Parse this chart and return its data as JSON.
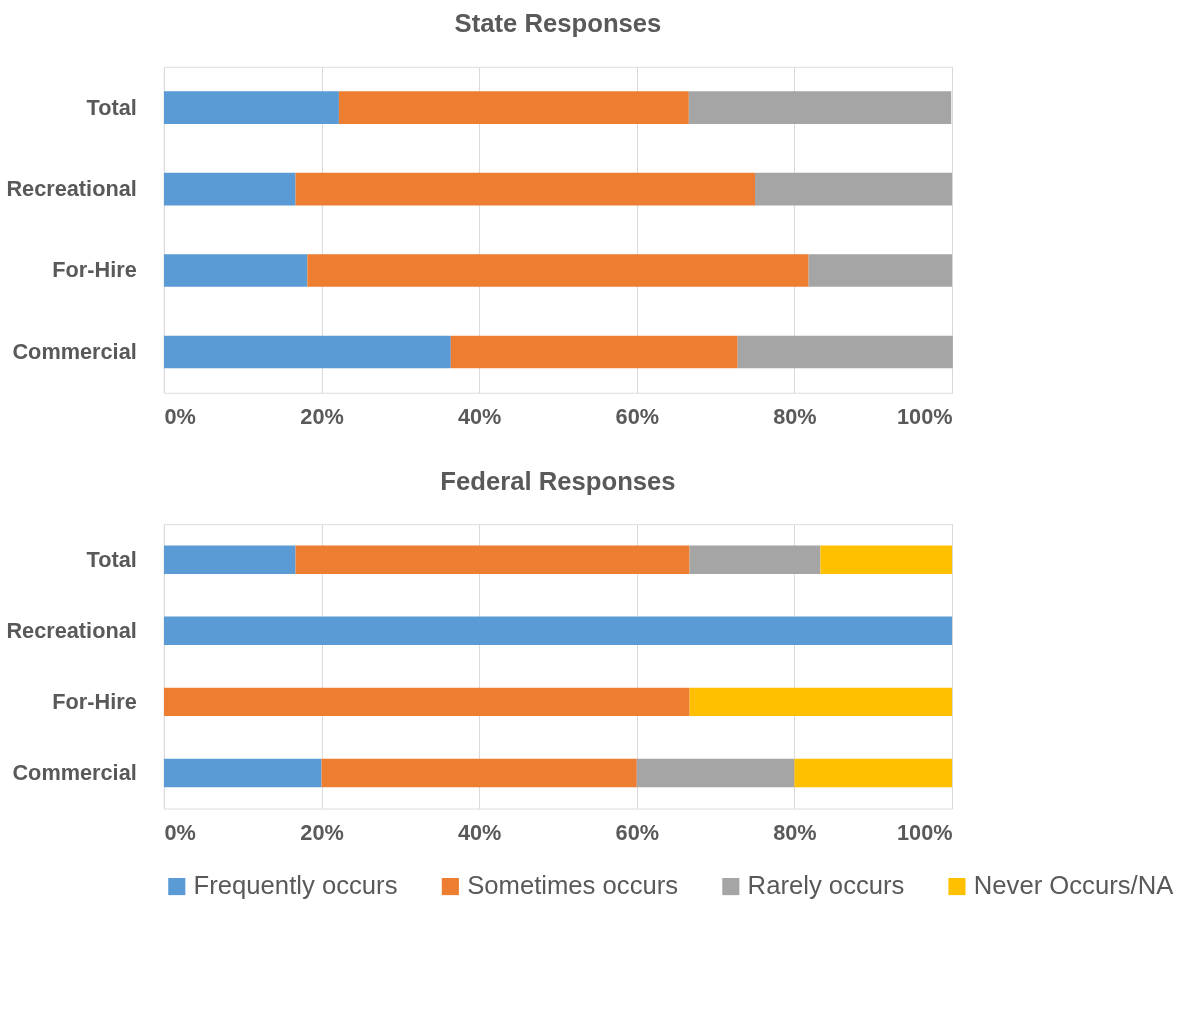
{
  "chart_data": [
    {
      "type": "bar",
      "orientation": "horizontal",
      "stacked": true,
      "title": "State Responses",
      "categories": [
        "Total",
        "Recreational",
        "For-Hire",
        "Commercial"
      ],
      "series": [
        {
          "name": "Frequently occurs",
          "color": "#5b9bd5",
          "values": [
            22.2,
            16.7,
            18.2,
            36.4
          ]
        },
        {
          "name": "Sometimes occurs",
          "color": "#ed7d31",
          "values": [
            44.4,
            58.3,
            63.6,
            36.4
          ]
        },
        {
          "name": "Rarely occurs",
          "color": "#a5a5a5",
          "values": [
            33.3,
            25.0,
            18.2,
            27.3
          ]
        }
      ],
      "xlim": [
        0,
        100
      ],
      "xticks": [
        {
          "value": 0,
          "label": "0%"
        },
        {
          "value": 20,
          "label": "20%"
        },
        {
          "value": 40,
          "label": "40%"
        },
        {
          "value": 60,
          "label": "60%"
        },
        {
          "value": 80,
          "label": "80%"
        },
        {
          "value": 100,
          "label": "100%"
        }
      ],
      "grid": "x",
      "legend": "bottom"
    },
    {
      "type": "bar",
      "orientation": "horizontal",
      "stacked": true,
      "title": "Federal Responses",
      "categories": [
        "Total",
        "Recreational",
        "For-Hire",
        "Commercial"
      ],
      "series": [
        {
          "name": "Frequently occurs",
          "color": "#5b9bd5",
          "values": [
            16.7,
            100,
            0,
            20
          ]
        },
        {
          "name": "Sometimes occurs",
          "color": "#ed7d31",
          "values": [
            50.0,
            0,
            66.7,
            40
          ]
        },
        {
          "name": "Rarely occurs",
          "color": "#a5a5a5",
          "values": [
            16.6,
            0,
            0,
            20
          ]
        },
        {
          "name": "Never Occurs/NA",
          "color": "#ffc000",
          "values": [
            16.7,
            0,
            33.3,
            20
          ]
        }
      ],
      "xlim": [
        0,
        100
      ],
      "xticks": [
        {
          "value": 0,
          "label": "0%"
        },
        {
          "value": 20,
          "label": "20%"
        },
        {
          "value": 40,
          "label": "40%"
        },
        {
          "value": 60,
          "label": "60%"
        },
        {
          "value": 80,
          "label": "80%"
        },
        {
          "value": 100,
          "label": "100%"
        }
      ],
      "grid": "x",
      "legend": "bottom"
    }
  ]
}
